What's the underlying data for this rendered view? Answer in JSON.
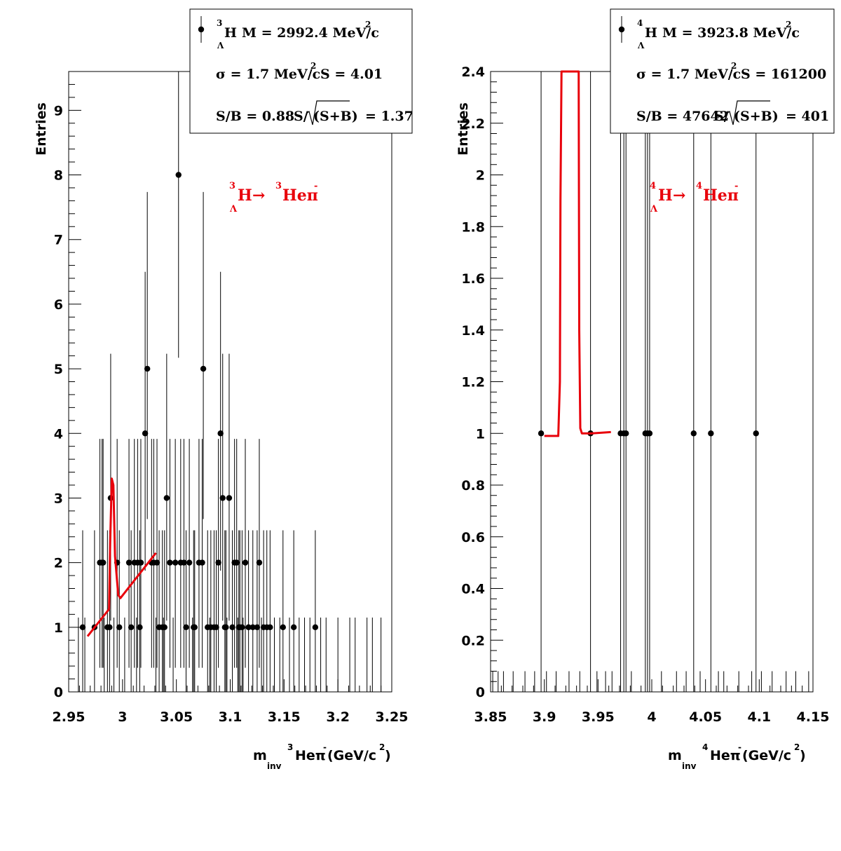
{
  "colors": {
    "fit": "#e8000b",
    "reaction": "#e8000b",
    "points": "#000000"
  },
  "chart_data": [
    {
      "type": "scatter",
      "panel": "left",
      "xlim": [
        2.95,
        3.25
      ],
      "ylim": [
        0,
        9.6
      ],
      "xticks": [
        2.95,
        3.0,
        3.05,
        3.1,
        3.15,
        3.2,
        3.25
      ],
      "xtick_labels": [
        "2.95",
        "3",
        "3.05",
        "3.1",
        "3.15",
        "3.2",
        "3.25"
      ],
      "yticks": [
        0,
        1,
        2,
        3,
        4,
        5,
        6,
        7,
        8,
        9
      ],
      "ytick_labels": [
        "0",
        "1",
        "2",
        "3",
        "4",
        "5",
        "6",
        "7",
        "8",
        "9"
      ],
      "ylabel": "Entries",
      "xlabel": {
        "m": "m",
        "inv": "inv",
        "nucleon": "3",
        "particle": "Heπ",
        "charge": "-",
        "unit": "(GeV/c",
        "unit_pow": "2",
        "close": ")"
      },
      "reaction": {
        "A": "3",
        "hyper": "H",
        "lambda": "Λ",
        "arrow": "→",
        "A2": "3",
        "product": "Heπ",
        "charge": "-"
      },
      "legend": {
        "A": "3",
        "sym": "H",
        "lambda": "Λ",
        "mass": "M = 2992.4 MeV/c",
        "mass_pow": "2",
        "sigma": "σ = 1.7 MeV/c",
        "sigma_pow": "2",
        "signal": "S = 4.01",
        "sb": "S/B = 0.88",
        "sig_prefix": "S/",
        "sig_root": "(S+B)",
        "sig_val": "= 1.37"
      },
      "points": [
        [
          2.963,
          1
        ],
        [
          2.974,
          1
        ],
        [
          2.979,
          2
        ],
        [
          2.981,
          2
        ],
        [
          2.982,
          2
        ],
        [
          2.986,
          1
        ],
        [
          2.988,
          1
        ],
        [
          2.989,
          3
        ],
        [
          2.995,
          2
        ],
        [
          2.997,
          1
        ],
        [
          3.006,
          2
        ],
        [
          3.008,
          1
        ],
        [
          3.011,
          2
        ],
        [
          3.014,
          2
        ],
        [
          3.016,
          1
        ],
        [
          3.017,
          2
        ],
        [
          3.021,
          4
        ],
        [
          3.023,
          5
        ],
        [
          3.027,
          2
        ],
        [
          3.029,
          2
        ],
        [
          3.032,
          2
        ],
        [
          3.034,
          1
        ],
        [
          3.037,
          1
        ],
        [
          3.039,
          1
        ],
        [
          3.041,
          3
        ],
        [
          3.044,
          2
        ],
        [
          3.049,
          2
        ],
        [
          3.052,
          8
        ],
        [
          3.054,
          2
        ],
        [
          3.057,
          2
        ],
        [
          3.059,
          1
        ],
        [
          3.062,
          2
        ],
        [
          3.066,
          1
        ],
        [
          3.067,
          1
        ],
        [
          3.071,
          2
        ],
        [
          3.074,
          2
        ],
        [
          3.075,
          5
        ],
        [
          3.079,
          1
        ],
        [
          3.082,
          1
        ],
        [
          3.085,
          1
        ],
        [
          3.087,
          1
        ],
        [
          3.089,
          2
        ],
        [
          3.091,
          4
        ],
        [
          3.093,
          3
        ],
        [
          3.095,
          1
        ],
        [
          3.096,
          1
        ],
        [
          3.099,
          3
        ],
        [
          3.102,
          1
        ],
        [
          3.104,
          2
        ],
        [
          3.106,
          2
        ],
        [
          3.108,
          1
        ],
        [
          3.109,
          1
        ],
        [
          3.111,
          1
        ],
        [
          3.114,
          2
        ],
        [
          3.117,
          1
        ],
        [
          3.121,
          1
        ],
        [
          3.125,
          1
        ],
        [
          3.127,
          2
        ],
        [
          3.131,
          1
        ],
        [
          3.134,
          1
        ],
        [
          3.137,
          1
        ],
        [
          3.149,
          1
        ],
        [
          3.159,
          1
        ],
        [
          3.179,
          1
        ]
      ],
      "fit": [
        [
          2.9675,
          0.86
        ],
        [
          2.9875,
          1.28
        ],
        [
          2.9885,
          2.3
        ],
        [
          2.99,
          3.3
        ],
        [
          2.9915,
          3.2
        ],
        [
          2.993,
          2.1
        ],
        [
          2.996,
          1.5
        ],
        [
          2.998,
          1.45
        ],
        [
          3.031,
          2.15
        ]
      ],
      "zero_bins": [
        2.959,
        2.965,
        2.983,
        2.992,
        3.002,
        3.013,
        3.031,
        3.038,
        3.047,
        3.065,
        3.081,
        3.097,
        3.107,
        3.112,
        3.129,
        3.141,
        3.146,
        3.155,
        3.164,
        3.169,
        3.174,
        3.184,
        3.189,
        3.2,
        3.211,
        3.216,
        3.227,
        3.232,
        3.24
      ]
    },
    {
      "type": "scatter",
      "panel": "right",
      "xlim": [
        3.85,
        4.15
      ],
      "ylim": [
        0,
        2.4
      ],
      "xticks": [
        3.85,
        3.9,
        3.95,
        4.0,
        4.05,
        4.1,
        4.15
      ],
      "xtick_labels": [
        "3.85",
        "3.9",
        "3.95",
        "4",
        "4.05",
        "4.1",
        "4.15"
      ],
      "yticks": [
        0,
        0.2,
        0.4,
        0.6,
        0.8,
        1,
        1.2,
        1.4,
        1.6,
        1.8,
        2,
        2.2,
        2.4
      ],
      "ytick_labels": [
        "0",
        "0.2",
        "0.4",
        "0.6",
        "0.8",
        "1",
        "1.2",
        "1.4",
        "1.6",
        "1.8",
        "2",
        "2.2",
        "2.4"
      ],
      "ylabel": "Entries",
      "xlabel": {
        "m": "m",
        "inv": "inv",
        "nucleon": "4",
        "particle": "Heπ",
        "charge": "-",
        "unit": " (GeV/c",
        "unit_pow": "2",
        "close": ")"
      },
      "reaction": {
        "A": "4",
        "hyper": "H",
        "lambda": "Λ",
        "arrow": "→",
        "A2": "4",
        "product": "Heπ",
        "charge": "-"
      },
      "legend": {
        "A": "4",
        "sym": "H",
        "lambda": "Λ",
        "mass": "M = 3923.8 MeV/c",
        "mass_pow": "2",
        "sigma": "σ = 1.7 MeV/c",
        "sigma_pow": "2",
        "signal": "S = 161200",
        "sb": "S/B = 47642",
        "sig_prefix": "S/",
        "sig_root": "(S+B)",
        "sig_val": "=  401"
      },
      "points": [
        [
          3.897,
          1
        ],
        [
          3.943,
          1
        ],
        [
          3.971,
          1
        ],
        [
          3.974,
          1
        ],
        [
          3.976,
          1
        ],
        [
          3.994,
          1
        ],
        [
          3.996,
          1
        ],
        [
          3.998,
          1
        ],
        [
          4.039,
          1
        ],
        [
          4.055,
          1
        ],
        [
          4.097,
          1
        ]
      ],
      "fit": [
        [
          3.9,
          0.99
        ],
        [
          3.913,
          0.99
        ],
        [
          3.9145,
          1.2
        ],
        [
          3.915,
          1.9
        ],
        [
          3.916,
          2.4
        ],
        [
          3.932,
          2.4
        ],
        [
          3.9325,
          1.4
        ],
        [
          3.9335,
          1.02
        ],
        [
          3.935,
          1.0
        ],
        [
          3.944,
          1.0
        ],
        [
          3.962,
          1.005
        ]
      ],
      "zero_bins": [
        3.852,
        3.857,
        3.862,
        3.871,
        3.882,
        3.891,
        3.902,
        3.911,
        3.923,
        3.933,
        3.949,
        3.957,
        3.963,
        3.981,
        4.009,
        4.023,
        4.032,
        4.045,
        4.062,
        4.067,
        4.081,
        4.093,
        4.102,
        4.112,
        4.125,
        4.134,
        4.146
      ]
    }
  ]
}
